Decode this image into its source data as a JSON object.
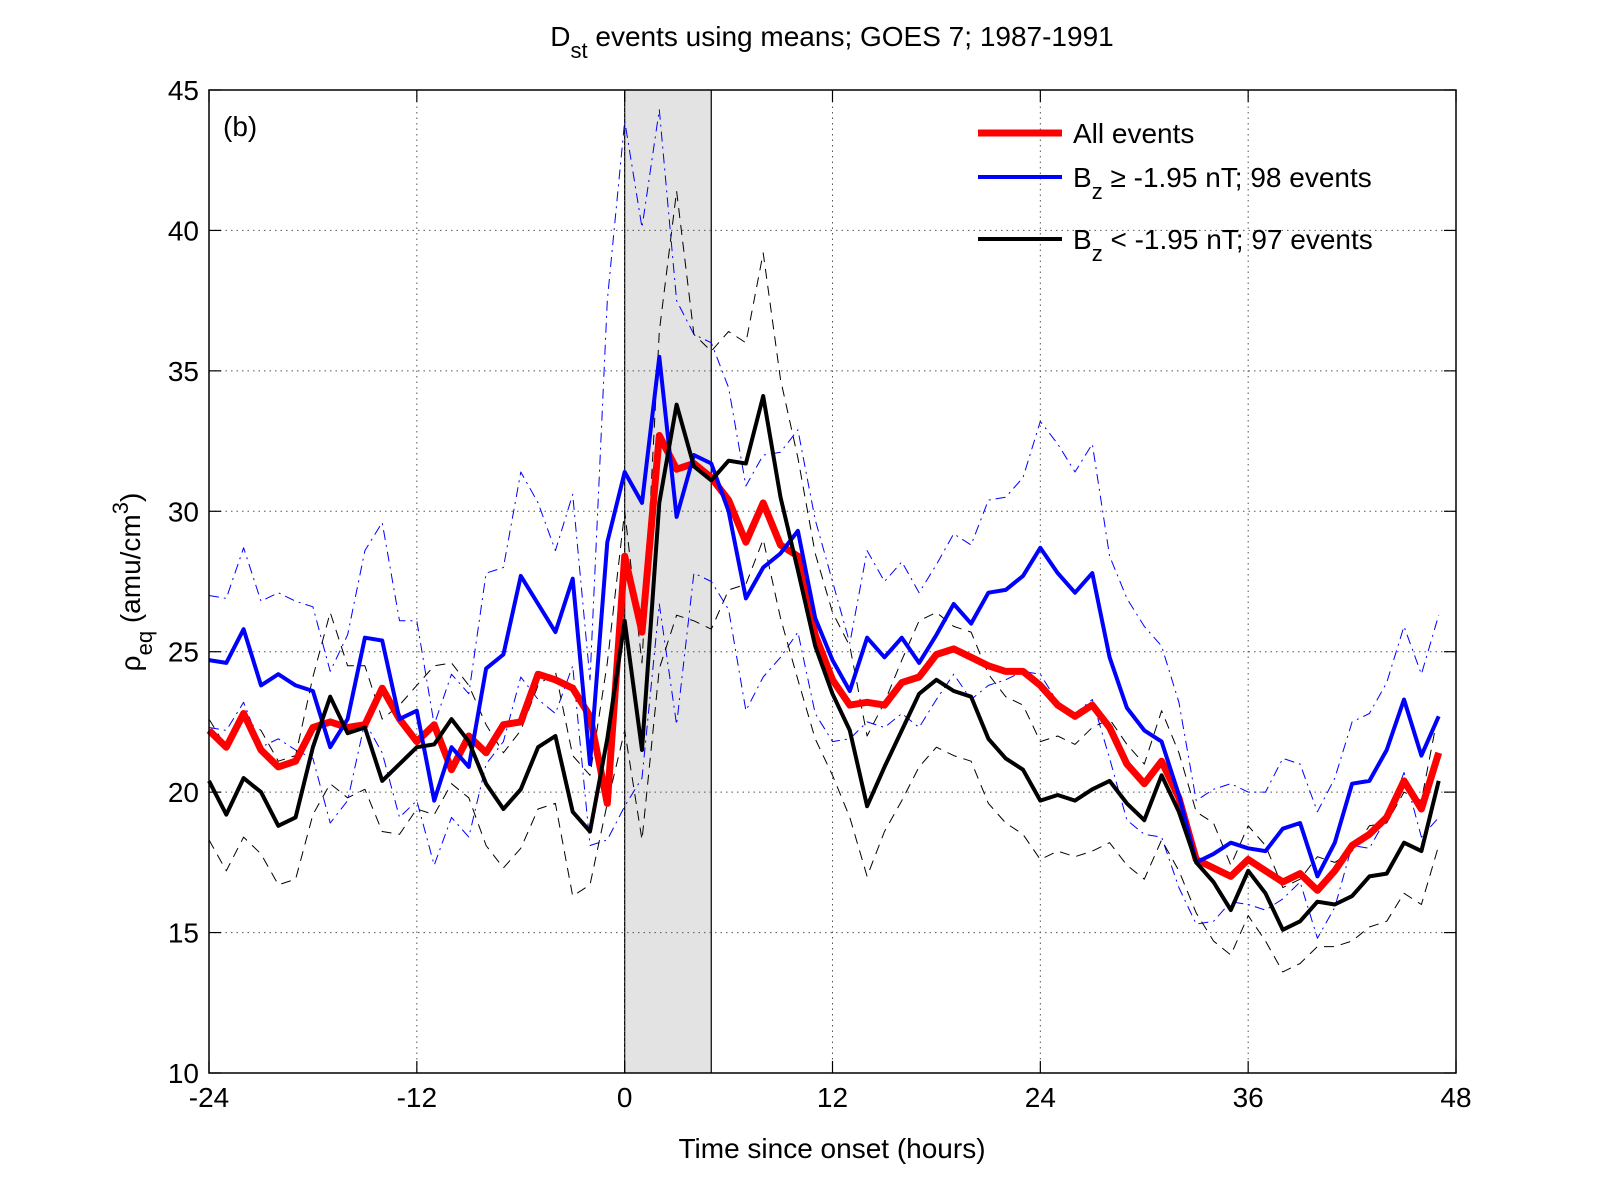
{
  "chart_data": {
    "type": "line",
    "title": [
      "D",
      "st",
      " events using means; GOES 7; 1987-1991"
    ],
    "xlabel": "Time since onset (hours)",
    "ylabel": [
      "ρ",
      "eq",
      " (amu/cm",
      "3",
      ")"
    ],
    "annotation": "(b)",
    "shaded_region": [
      0,
      5
    ],
    "xlim": [
      -24,
      48
    ],
    "xticks": [
      -24,
      -12,
      0,
      12,
      24,
      36,
      48
    ],
    "ylim": [
      10,
      45
    ],
    "yticks": [
      10,
      15,
      20,
      25,
      30,
      35,
      40,
      45
    ],
    "grid": true,
    "legend": "upper right",
    "x": [
      -24,
      -23,
      -22,
      -21,
      -20,
      -19,
      -18,
      -17,
      -16,
      -15,
      -14,
      -13,
      -12,
      -11,
      -10,
      -9,
      -8,
      -7,
      -6,
      -5,
      -4,
      -3,
      -2,
      -1,
      0,
      1,
      2,
      3,
      4,
      5,
      6,
      7,
      8,
      9,
      10,
      11,
      12,
      13,
      14,
      15,
      16,
      17,
      18,
      19,
      20,
      21,
      22,
      23,
      24,
      25,
      26,
      27,
      28,
      29,
      30,
      31,
      32,
      33,
      34,
      35,
      36,
      37,
      38,
      39,
      40,
      41,
      42,
      43,
      44,
      45,
      46,
      47
    ],
    "series": [
      {
        "name": [
          "All events"
        ],
        "color": "#ff0000",
        "width": 7,
        "style": "solid",
        "values": [
          22.2,
          21.6,
          22.8,
          21.5,
          20.9,
          21.1,
          22.3,
          22.5,
          22.3,
          22.4,
          23.7,
          22.6,
          21.8,
          22.4,
          20.8,
          22.0,
          21.4,
          22.4,
          22.5,
          24.2,
          24.0,
          23.7,
          22.7,
          19.6,
          28.4,
          25.7,
          32.7,
          31.5,
          31.7,
          31.2,
          30.4,
          28.9,
          30.3,
          28.8,
          28.4,
          25.6,
          24.0,
          23.1,
          23.2,
          23.1,
          23.9,
          24.1,
          24.9,
          25.1,
          24.8,
          24.5,
          24.3,
          24.3,
          23.8,
          23.1,
          22.7,
          23.1,
          22.3,
          21.0,
          20.3,
          21.1,
          19.8,
          17.6,
          17.3,
          17.0,
          17.6,
          17.2,
          16.8,
          17.1,
          16.5,
          17.2,
          18.1,
          18.5,
          19.1,
          20.4,
          19.4,
          21.4
        ]
      },
      {
        "name": [
          "B",
          "z",
          " ≥ -1.95 nT; 98 events"
        ],
        "color": "#0000ff",
        "width": 4,
        "style": "solid",
        "values": [
          24.7,
          24.6,
          25.8,
          23.8,
          24.2,
          23.8,
          23.6,
          21.6,
          22.6,
          25.5,
          25.4,
          22.6,
          22.9,
          19.7,
          21.6,
          20.9,
          24.4,
          24.9,
          27.7,
          26.7,
          25.7,
          27.6,
          21.0,
          28.9,
          31.4,
          30.3,
          35.5,
          29.8,
          32.0,
          31.7,
          30.0,
          26.9,
          28.0,
          28.5,
          29.3,
          26.2,
          24.7,
          23.6,
          25.5,
          24.8,
          25.5,
          24.6,
          25.6,
          26.7,
          26.0,
          27.1,
          27.2,
          27.7,
          28.7,
          27.8,
          27.1,
          27.8,
          24.8,
          23.0,
          22.2,
          21.8,
          19.9,
          17.5,
          17.8,
          18.2,
          18.0,
          17.9,
          18.7,
          18.9,
          17.0,
          18.2,
          20.3,
          20.4,
          21.5,
          23.3,
          21.3,
          22.7
        ]
      },
      {
        "name": [
          "B",
          "z",
          " < -1.95 nT; 97 events"
        ],
        "color": "#000000",
        "width": 4,
        "style": "solid",
        "values": [
          20.4,
          19.2,
          20.5,
          20.0,
          18.8,
          19.1,
          21.6,
          23.4,
          22.1,
          22.3,
          20.4,
          21.0,
          21.6,
          21.7,
          22.6,
          21.8,
          20.3,
          19.4,
          20.1,
          21.6,
          22.0,
          19.3,
          18.6,
          21.9,
          26.1,
          21.5,
          30.3,
          33.8,
          31.6,
          31.1,
          31.8,
          31.7,
          34.1,
          30.5,
          27.9,
          25.2,
          23.5,
          22.2,
          19.5,
          20.9,
          22.2,
          23.5,
          24.0,
          23.6,
          23.4,
          21.9,
          21.2,
          20.8,
          19.7,
          19.9,
          19.7,
          20.1,
          20.4,
          19.6,
          19.0,
          20.6,
          19.3,
          17.5,
          16.8,
          15.8,
          17.2,
          16.4,
          15.1,
          15.4,
          16.1,
          16.0,
          16.3,
          17.0,
          17.1,
          18.2,
          17.9,
          20.4
        ]
      },
      {
        "color": "#0000ff",
        "width": 1,
        "style": "dashdot",
        "values": [
          27.0,
          26.9,
          28.7,
          26.8,
          27.1,
          26.8,
          26.6,
          24.3,
          25.6,
          28.6,
          29.6,
          26.1,
          26.1,
          22.4,
          24.2,
          23.5,
          27.8,
          28.0,
          31.4,
          30.3,
          28.6,
          30.6,
          24.0,
          37.5,
          43.9,
          40.1,
          44.3,
          37.5,
          36.3,
          36.0,
          34.4,
          30.9,
          32.0,
          32.1,
          32.9,
          29.7,
          27.5,
          25.3,
          28.6,
          27.5,
          28.2,
          27.1,
          28.1,
          29.2,
          28.8,
          30.4,
          30.5,
          31.2,
          33.2,
          32.4,
          31.4,
          32.4,
          28.4,
          26.9,
          25.9,
          25.2,
          23.2,
          19.7,
          20.1,
          20.3,
          20.0,
          20.0,
          21.2,
          21.0,
          19.3,
          20.5,
          22.5,
          22.8,
          23.9,
          25.9,
          24.2,
          26.3
        ]
      },
      {
        "color": "#0000ff",
        "width": 1,
        "style": "dashdot",
        "values": [
          22.3,
          22.2,
          23.2,
          21.6,
          21.9,
          21.5,
          21.2,
          18.9,
          19.7,
          22.5,
          21.4,
          19.1,
          19.7,
          17.4,
          19.1,
          18.4,
          21.0,
          21.8,
          24.1,
          23.3,
          22.8,
          24.5,
          18.1,
          18.3,
          19.5,
          20.5,
          26.7,
          22.4,
          27.8,
          27.5,
          26.5,
          22.9,
          24.1,
          24.8,
          25.7,
          22.8,
          21.8,
          21.9,
          22.5,
          22.3,
          22.8,
          22.3,
          23.3,
          24.2,
          23.3,
          23.8,
          24.0,
          24.3,
          24.2,
          23.2,
          22.8,
          23.3,
          21.2,
          19.0,
          18.5,
          18.4,
          16.6,
          15.3,
          15.4,
          16.1,
          16.0,
          15.8,
          16.2,
          16.8,
          14.8,
          15.9,
          18.1,
          18.0,
          19.1,
          20.7,
          18.4,
          19.1
        ]
      },
      {
        "color": "#000000",
        "width": 1,
        "style": "dashed",
        "values": [
          22.6,
          21.6,
          22.6,
          22.2,
          21.1,
          21.3,
          24.1,
          26.4,
          24.5,
          24.5,
          22.6,
          23.1,
          23.8,
          24.5,
          24.6,
          23.8,
          22.4,
          21.4,
          22.2,
          23.8,
          24.3,
          21.3,
          20.6,
          24.6,
          30.0,
          24.6,
          36.4,
          41.4,
          36.3,
          35.7,
          36.4,
          36.0,
          39.2,
          34.7,
          31.9,
          28.5,
          26.4,
          25.2,
          22.0,
          23.2,
          24.7,
          26.1,
          26.4,
          25.9,
          25.7,
          24.2,
          23.4,
          23.1,
          21.8,
          22.0,
          21.7,
          22.3,
          22.6,
          21.7,
          21.0,
          22.9,
          21.4,
          19.3,
          18.9,
          17.4,
          18.8,
          18.1,
          16.6,
          16.9,
          17.7,
          17.5,
          17.9,
          18.8,
          18.9,
          20.0,
          19.7,
          22.9
        ]
      },
      {
        "color": "#000000",
        "width": 1,
        "style": "dashed",
        "values": [
          18.3,
          17.2,
          18.4,
          17.8,
          16.7,
          16.9,
          19.2,
          20.3,
          19.8,
          20.1,
          18.6,
          18.5,
          19.4,
          19.2,
          20.3,
          19.8,
          18.1,
          17.3,
          18.0,
          19.4,
          19.6,
          16.3,
          16.7,
          19.6,
          22.2,
          18.3,
          24.4,
          26.3,
          26.1,
          25.8,
          27.2,
          27.4,
          29.0,
          26.2,
          24.0,
          21.9,
          20.6,
          19.1,
          17.0,
          18.6,
          19.7,
          20.9,
          21.6,
          21.3,
          21.1,
          19.6,
          18.9,
          18.5,
          17.6,
          17.9,
          17.7,
          17.9,
          18.2,
          17.4,
          16.9,
          18.3,
          17.2,
          15.7,
          14.7,
          14.2,
          15.6,
          14.7,
          13.6,
          13.9,
          14.5,
          14.5,
          14.7,
          15.2,
          15.4,
          16.4,
          16.0,
          18.1
        ]
      }
    ]
  }
}
